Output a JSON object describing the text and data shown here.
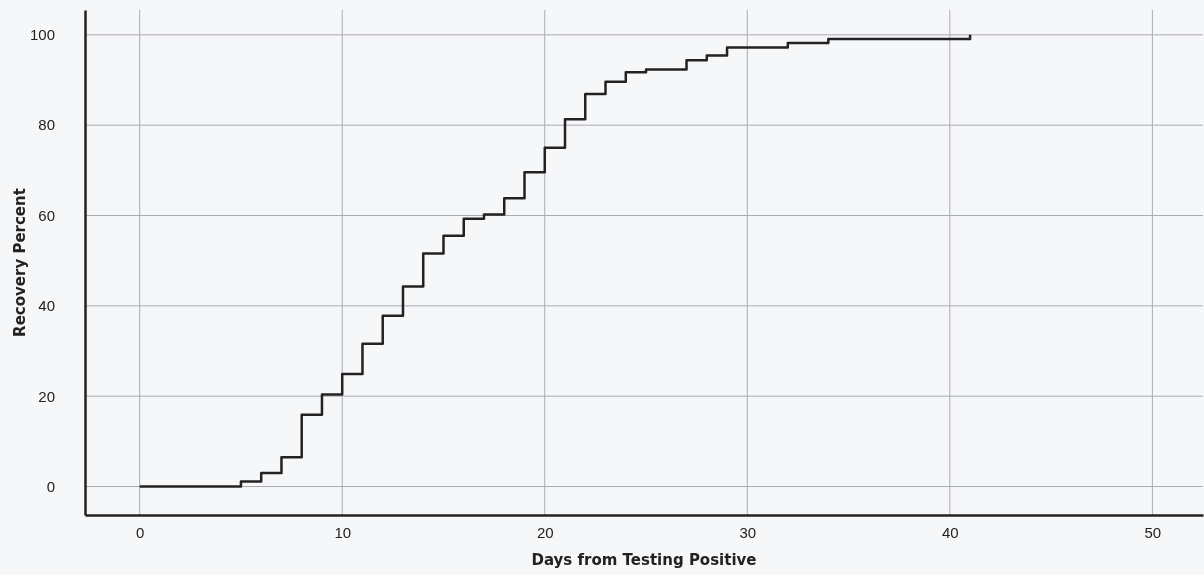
{
  "chart_data": {
    "type": "step",
    "xlabel": "Days from Testing Positive",
    "ylabel": "Recovery Percent",
    "x": [
      0,
      5,
      6,
      7,
      8,
      9,
      10,
      11,
      12,
      13,
      14,
      15,
      16,
      17,
      18,
      19,
      20,
      21,
      22,
      23,
      24,
      25,
      27,
      28,
      29,
      32,
      34,
      41
    ],
    "series": [
      {
        "color": "#222222",
        "values": [
          0,
          1.1,
          3,
          6.5,
          15.9,
          20.4,
          24.9,
          31.6,
          37.8,
          44.3,
          51.6,
          55.5,
          59.3,
          60.2,
          63.8,
          69.6,
          75,
          81.3,
          86.9,
          89.6,
          91.7,
          92.3,
          94.4,
          95.4,
          97.2,
          98.2,
          99.1,
          100
        ]
      }
    ],
    "xlim": [
      -2.7,
      52.5
    ],
    "ylim": [
      -6.3,
      105.5
    ],
    "xticks": [
      0,
      10,
      20,
      30,
      40,
      50
    ],
    "yticks": [
      0,
      20,
      40,
      60,
      80,
      100
    ],
    "grid": true,
    "marker": "none",
    "line_style": "solid"
  }
}
